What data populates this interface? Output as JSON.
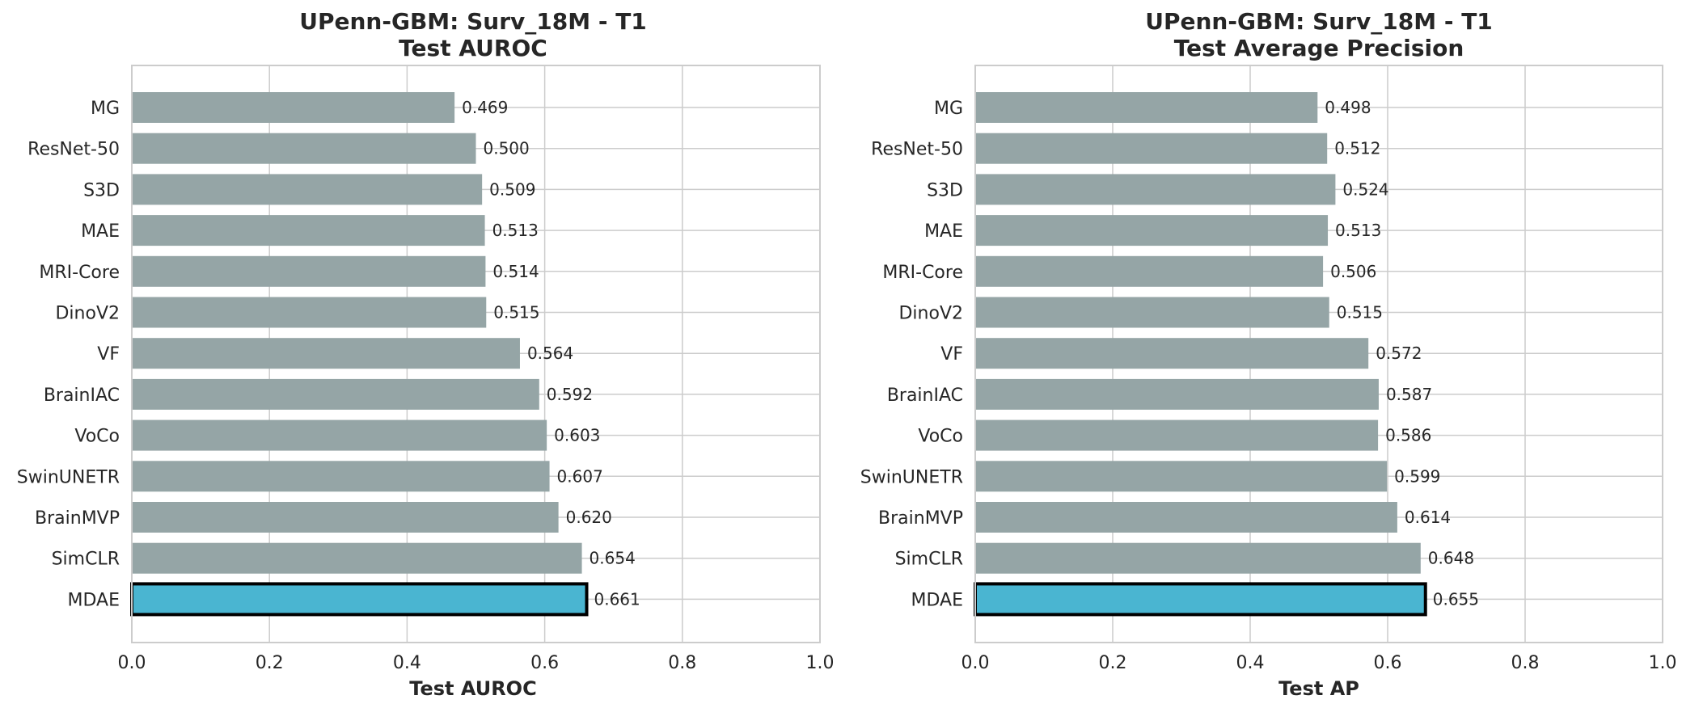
{
  "chart_data": [
    {
      "type": "bar",
      "orientation": "horizontal",
      "title_line1": "UPenn-GBM: Surv_18M - T1",
      "title_line2": "Test AUROC",
      "xlabel": "Test AUROC",
      "ylabel": "",
      "xlim": [
        0.0,
        1.0
      ],
      "xticks": [
        "0.0",
        "0.2",
        "0.4",
        "0.6",
        "0.8",
        "1.0"
      ],
      "grid": true,
      "categories": [
        "MG",
        "ResNet-50",
        "S3D",
        "MAE",
        "MRI-Core",
        "DinoV2",
        "VF",
        "BrainIAC",
        "VoCo",
        "SwinUNETR",
        "BrainMVP",
        "SimCLR",
        "MDAE"
      ],
      "values": [
        0.469,
        0.5,
        0.509,
        0.513,
        0.514,
        0.515,
        0.564,
        0.592,
        0.603,
        0.607,
        0.62,
        0.654,
        0.661
      ],
      "value_labels": [
        "0.469",
        "0.500",
        "0.509",
        "0.513",
        "0.514",
        "0.515",
        "0.564",
        "0.592",
        "0.603",
        "0.607",
        "0.620",
        "0.654",
        "0.661"
      ],
      "highlight": "MDAE",
      "colors": {
        "bar": "#95a5a6",
        "highlight": "#4ab5d1",
        "highlight_edge": "#000000"
      }
    },
    {
      "type": "bar",
      "orientation": "horizontal",
      "title_line1": "UPenn-GBM: Surv_18M - T1",
      "title_line2": "Test Average Precision",
      "xlabel": "Test AP",
      "ylabel": "",
      "xlim": [
        0.0,
        1.0
      ],
      "xticks": [
        "0.0",
        "0.2",
        "0.4",
        "0.6",
        "0.8",
        "1.0"
      ],
      "grid": true,
      "categories": [
        "MG",
        "ResNet-50",
        "S3D",
        "MAE",
        "MRI-Core",
        "DinoV2",
        "VF",
        "BrainIAC",
        "VoCo",
        "SwinUNETR",
        "BrainMVP",
        "SimCLR",
        "MDAE"
      ],
      "values": [
        0.498,
        0.512,
        0.524,
        0.513,
        0.506,
        0.515,
        0.572,
        0.587,
        0.586,
        0.599,
        0.614,
        0.648,
        0.655
      ],
      "value_labels": [
        "0.498",
        "0.512",
        "0.524",
        "0.513",
        "0.506",
        "0.515",
        "0.572",
        "0.587",
        "0.586",
        "0.599",
        "0.614",
        "0.648",
        "0.655"
      ],
      "highlight": "MDAE",
      "colors": {
        "bar": "#95a5a6",
        "highlight": "#4ab5d1",
        "highlight_edge": "#000000"
      }
    }
  ]
}
